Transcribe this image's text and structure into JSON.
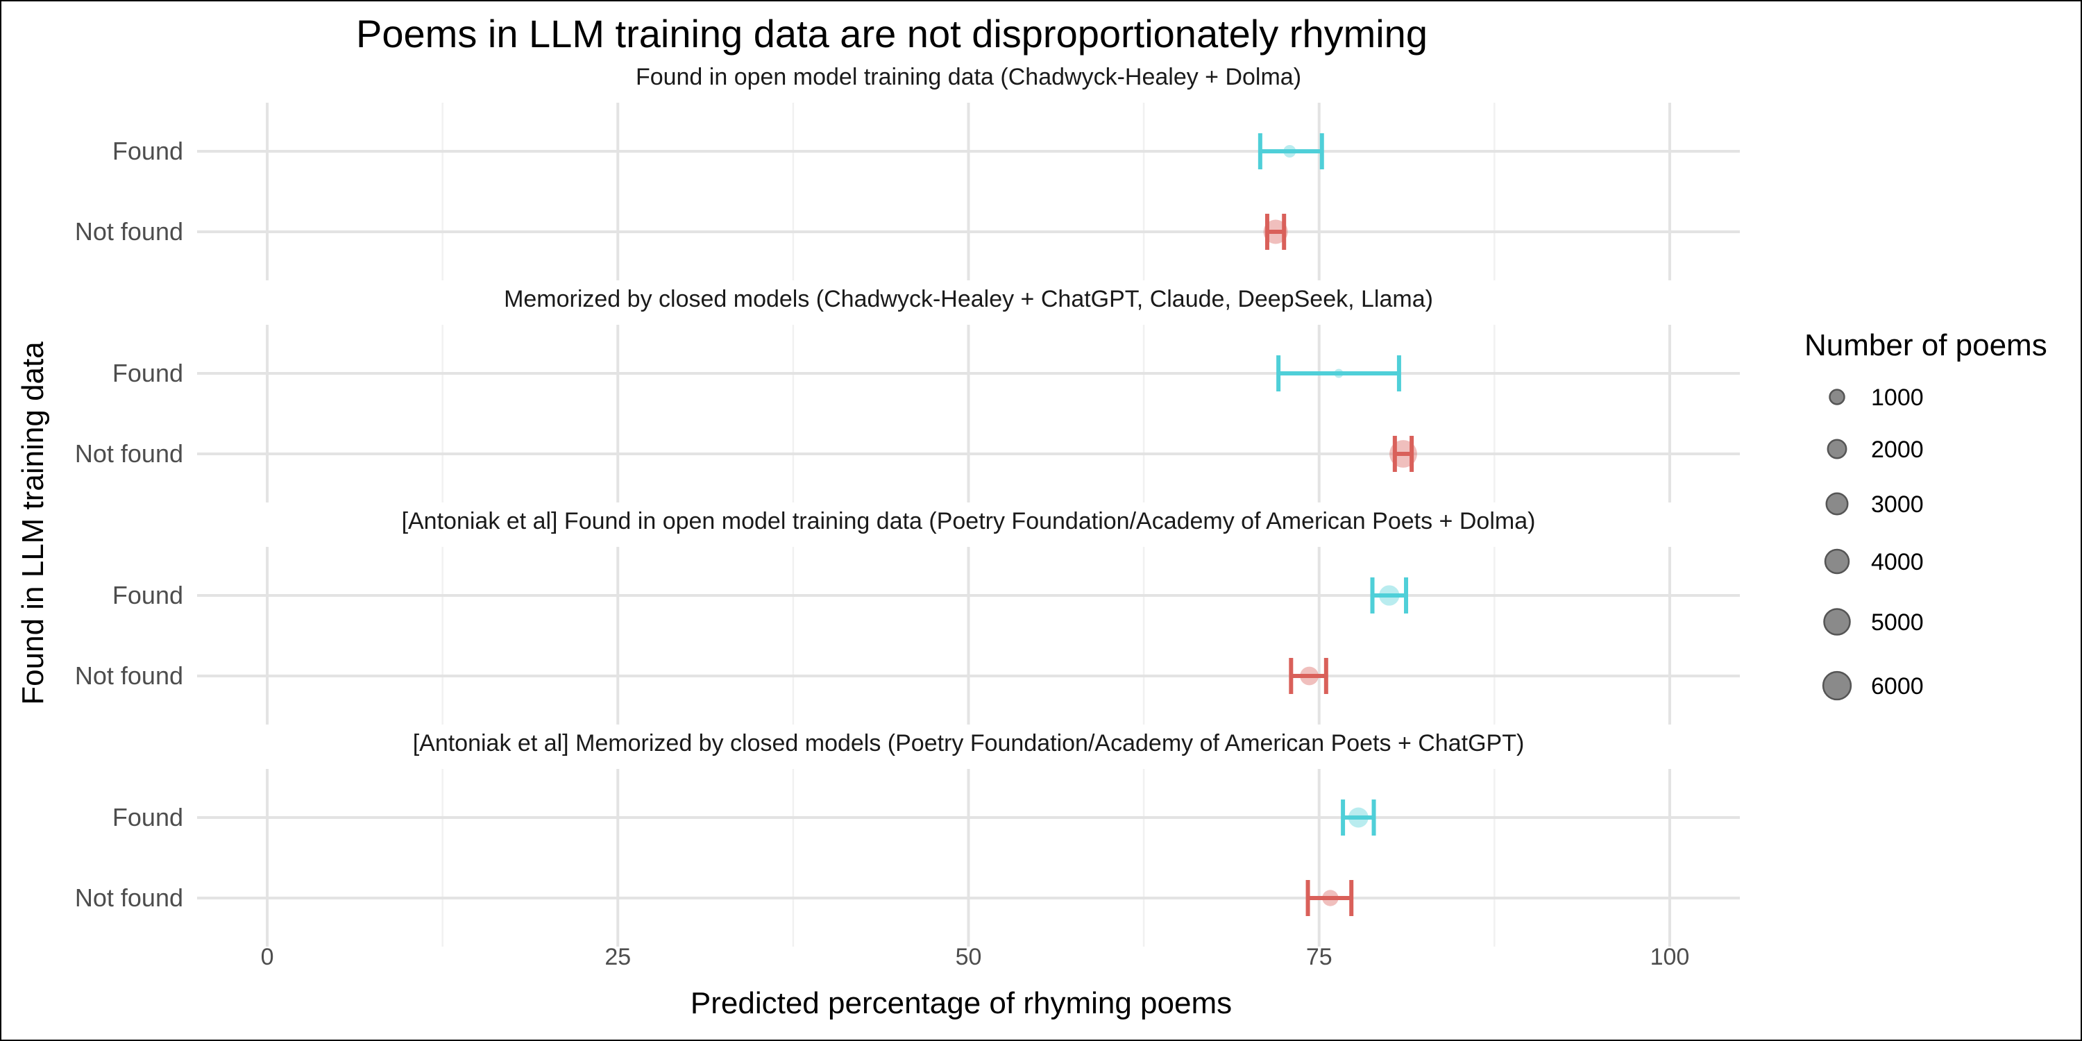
{
  "chart_data": {
    "type": "scatter",
    "title": "Poems in LLM training data are not disproportionately rhyming",
    "xlabel": "Predicted percentage of rhyming poems",
    "ylabel": "Found in LLM training data",
    "xlim": [
      -5,
      105
    ],
    "x_ticks": [
      0,
      25,
      50,
      75,
      100
    ],
    "x_tick_labels": [
      "0",
      "25",
      "50",
      "75",
      "100"
    ],
    "y_categories": [
      "Found",
      "Not found"
    ],
    "grid": true,
    "colors": {
      "Found": "#4fcfd8",
      "Not found": "#d9605a"
    },
    "legend": {
      "title": "Number of poems",
      "position": "right",
      "sizes": [
        1000,
        2000,
        3000,
        4000,
        5000,
        6000
      ],
      "labels": [
        "1000",
        "2000",
        "3000",
        "4000",
        "5000",
        "6000"
      ],
      "color": "#8a8a8a"
    },
    "panels": [
      {
        "title": "Found in open model training data (Chadwyck-Healey + Dolma)",
        "points": [
          {
            "group": "Found",
            "estimate": 72.9,
            "lower": 70.8,
            "upper": 75.2,
            "n": 600
          },
          {
            "group": "Not found",
            "estimate": 71.9,
            "lower": 71.3,
            "upper": 72.5,
            "n": 4300
          }
        ]
      },
      {
        "title": "Memorized by closed models (Chadwyck-Healey + ChatGPT, Claude, DeepSeek, Llama)",
        "points": [
          {
            "group": "Found",
            "estimate": 76.4,
            "lower": 72.1,
            "upper": 80.7,
            "n": 150
          },
          {
            "group": "Not found",
            "estimate": 81.0,
            "lower": 80.4,
            "upper": 81.6,
            "n": 6000
          }
        ]
      },
      {
        "title": "[Antoniak et al] Found in open model training data (Poetry Foundation/Academy of American Poets + Dolma)",
        "points": [
          {
            "group": "Found",
            "estimate": 80.0,
            "lower": 78.8,
            "upper": 81.2,
            "n": 2700
          },
          {
            "group": "Not found",
            "estimate": 74.3,
            "lower": 73.0,
            "upper": 75.5,
            "n": 2100
          }
        ]
      },
      {
        "title": "[Antoniak et al] Memorized by closed models (Poetry Foundation/Academy of American Poets + ChatGPT)",
        "points": [
          {
            "group": "Found",
            "estimate": 77.8,
            "lower": 76.7,
            "upper": 78.9,
            "n": 2600
          },
          {
            "group": "Not found",
            "estimate": 75.8,
            "lower": 74.2,
            "upper": 77.3,
            "n": 1400
          }
        ]
      }
    ]
  }
}
